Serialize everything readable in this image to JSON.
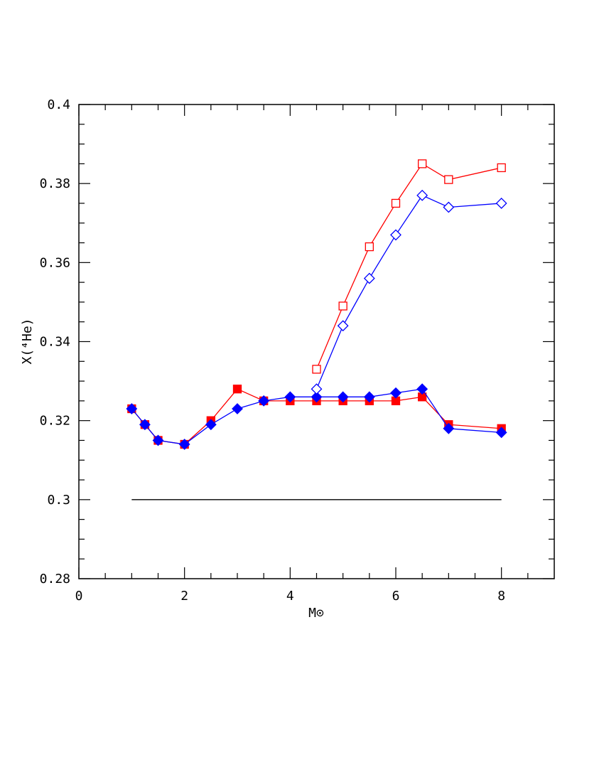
{
  "chart_data": {
    "type": "line",
    "xlabel": "M⊙",
    "ylabel": "X(⁴He)",
    "xlim": [
      0,
      9
    ],
    "ylim": [
      0.28,
      0.4
    ],
    "xticks": [
      0,
      2,
      4,
      6,
      8
    ],
    "yticks": [
      0.28,
      0.3,
      0.32,
      0.34,
      0.36,
      0.38,
      0.4
    ],
    "xminorticks": [
      0.5,
      1,
      1.5,
      2.5,
      3,
      3.5,
      4.5,
      5,
      5.5,
      6.5,
      7,
      7.5,
      8.5
    ],
    "yminorticks": [
      0.285,
      0.29,
      0.295,
      0.305,
      0.31,
      0.315,
      0.325,
      0.33,
      0.335,
      0.345,
      0.35,
      0.355,
      0.365,
      0.37,
      0.375,
      0.385,
      0.39,
      0.395
    ],
    "series": [
      {
        "color": "#ff0000",
        "marker": "square",
        "filled": true,
        "x": [
          1,
          1.25,
          1.5,
          2,
          2.5,
          3,
          3.5,
          4,
          4.5,
          5,
          5.5,
          6,
          6.5,
          7,
          8
        ],
        "values": [
          0.323,
          0.319,
          0.315,
          0.314,
          0.32,
          0.328,
          0.325,
          0.325,
          0.325,
          0.325,
          0.325,
          0.325,
          0.326,
          0.319,
          0.318
        ]
      },
      {
        "color": "#0000ff",
        "marker": "diamond",
        "filled": true,
        "x": [
          1,
          1.25,
          1.5,
          2,
          2.5,
          3,
          3.5,
          4,
          4.5,
          5,
          5.5,
          6,
          6.5,
          7,
          8
        ],
        "values": [
          0.323,
          0.319,
          0.315,
          0.314,
          0.319,
          0.323,
          0.325,
          0.326,
          0.326,
          0.326,
          0.326,
          0.327,
          0.328,
          0.318,
          0.317
        ]
      },
      {
        "color": "#ff0000",
        "marker": "square",
        "filled": false,
        "x": [
          4.5,
          5,
          5.5,
          6,
          6.5,
          7,
          8
        ],
        "values": [
          0.333,
          0.349,
          0.364,
          0.375,
          0.385,
          0.381,
          0.384
        ]
      },
      {
        "color": "#0000ff",
        "marker": "diamond",
        "filled": false,
        "x": [
          4.5,
          5,
          5.5,
          6,
          6.5,
          7,
          8
        ],
        "values": [
          0.328,
          0.344,
          0.356,
          0.367,
          0.377,
          0.374,
          0.375
        ]
      },
      {
        "color": "#000000",
        "marker": "none",
        "filled": false,
        "x": [
          1,
          8
        ],
        "values": [
          0.3,
          0.3
        ]
      }
    ]
  }
}
